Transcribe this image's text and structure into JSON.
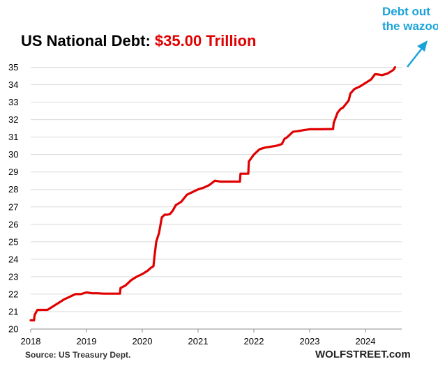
{
  "title": {
    "main": "US National Debt: ",
    "value": "$35.00 Trillion",
    "value_color": "#e00000"
  },
  "annotation": {
    "line1": "Debt out",
    "line2": "the wazoo",
    "color": "#1aa3d9"
  },
  "source": "Source: US Treasury Dept.",
  "brand": "WOLFSTREET.com",
  "chart_data": {
    "type": "line",
    "title": "US National Debt: $35.00 Trillion",
    "xlabel": "",
    "ylabel": "",
    "xlim": [
      2018.0,
      2024.65
    ],
    "ylim": [
      20,
      35.5
    ],
    "y_ticks": [
      20,
      21,
      22,
      23,
      24,
      25,
      26,
      27,
      28,
      29,
      30,
      31,
      32,
      33,
      34,
      35
    ],
    "x_ticks": [
      2018,
      2019,
      2020,
      2021,
      2022,
      2023,
      2024
    ],
    "x_tick_labels": [
      "2018",
      "2019",
      "2020",
      "2021",
      "2022",
      "2023",
      "2024"
    ],
    "grid": "horizontal",
    "legend": "none",
    "series": [
      {
        "name": "US National Debt ($ Trillion)",
        "color": "#e00000",
        "x": [
          2018.0,
          2018.06,
          2018.07,
          2018.12,
          2018.2,
          2018.3,
          2018.4,
          2018.5,
          2018.6,
          2018.7,
          2018.8,
          2018.9,
          2019.0,
          2019.1,
          2019.15,
          2019.2,
          2019.3,
          2019.4,
          2019.5,
          2019.6,
          2019.61,
          2019.7,
          2019.8,
          2019.9,
          2020.0,
          2020.1,
          2020.15,
          2020.2,
          2020.22,
          2020.25,
          2020.3,
          2020.35,
          2020.4,
          2020.45,
          2020.5,
          2020.55,
          2020.6,
          2020.65,
          2020.7,
          2020.75,
          2020.8,
          2020.9,
          2021.0,
          2021.1,
          2021.2,
          2021.3,
          2021.4,
          2021.5,
          2021.6,
          2021.75,
          2021.76,
          2021.9,
          2021.91,
          2022.0,
          2022.1,
          2022.2,
          2022.3,
          2022.4,
          2022.5,
          2022.55,
          2022.6,
          2022.7,
          2022.8,
          2022.9,
          2023.0,
          2023.2,
          2023.4,
          2023.42,
          2023.43,
          2023.5,
          2023.55,
          2023.6,
          2023.7,
          2023.73,
          2023.8,
          2023.9,
          2024.0,
          2024.1,
          2024.17,
          2024.2,
          2024.3,
          2024.4,
          2024.5,
          2024.53
        ],
        "values": [
          20.5,
          20.5,
          20.8,
          21.1,
          21.1,
          21.1,
          21.3,
          21.5,
          21.7,
          21.85,
          22.0,
          22.0,
          22.1,
          22.05,
          22.05,
          22.05,
          22.03,
          22.03,
          22.03,
          22.03,
          22.35,
          22.5,
          22.8,
          23.0,
          23.15,
          23.35,
          23.5,
          23.6,
          24.2,
          25.0,
          25.5,
          26.4,
          26.55,
          26.55,
          26.6,
          26.8,
          27.1,
          27.2,
          27.3,
          27.5,
          27.7,
          27.85,
          28.0,
          28.1,
          28.25,
          28.5,
          28.45,
          28.45,
          28.45,
          28.45,
          28.9,
          28.9,
          29.6,
          30.0,
          30.3,
          30.4,
          30.45,
          30.5,
          30.6,
          30.9,
          31.0,
          31.3,
          31.35,
          31.4,
          31.45,
          31.45,
          31.46,
          31.46,
          31.8,
          32.4,
          32.6,
          32.7,
          33.1,
          33.5,
          33.75,
          33.9,
          34.1,
          34.3,
          34.6,
          34.6,
          34.55,
          34.65,
          34.85,
          35.0
        ]
      }
    ]
  }
}
